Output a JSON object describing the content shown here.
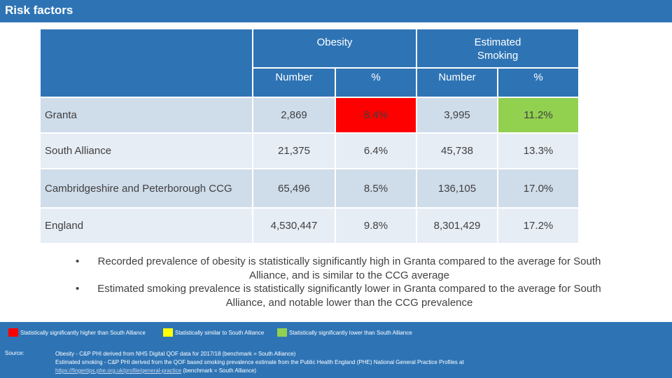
{
  "header": {
    "title": "Risk factors"
  },
  "table": {
    "group_headers": {
      "obesity": "Obesity",
      "smoking": "Estimated Smoking"
    },
    "sub_headers": {
      "obesity_number": "Number",
      "obesity_pct": "%",
      "smoking_number": "Number",
      "smoking_pct": "%"
    },
    "rows": [
      {
        "name": "Granta",
        "obesity_number": "2,869",
        "obesity_pct": "8.4%",
        "smoking_number": "3,995",
        "smoking_pct": "11.2%"
      },
      {
        "name": "South Alliance",
        "obesity_number": "21,375",
        "obesity_pct": "6.4%",
        "smoking_number": "45,738",
        "smoking_pct": "13.3%"
      },
      {
        "name": "Cambridgeshire and Peterborough CCG",
        "obesity_number": "65,496",
        "obesity_pct": "8.5%",
        "smoking_number": "136,105",
        "smoking_pct": "17.0%"
      },
      {
        "name": "England",
        "obesity_number": "4,530,447",
        "obesity_pct": "9.8%",
        "smoking_number": "8,301,429",
        "smoking_pct": "17.2%"
      }
    ],
    "highlight_colors": {
      "high": "#ff0000",
      "similar": "#ffff00",
      "low": "#92d050"
    }
  },
  "bullets": [
    "Recorded prevalence of obesity is statistically significantly high in Granta compared to the average for South Alliance, and is similar to the CCG average",
    "Estimated smoking prevalence is statistically significantly lower in Granta compared to the average for South Alliance, and notable lower than the CCG prevalence"
  ],
  "bullet_symbol": "•",
  "legend": {
    "high": "Statistically significantly higher than South Alliance",
    "similar": "Statistically similar to South Alliance",
    "low": "Statistically significantly lower than South Alliance"
  },
  "source": {
    "label": "Source:",
    "line1": "Obesity - C&P PHI derived from NHS Digital QOF data for 2017/18 (benchmark = South Alliance)",
    "line2": "Estimated smoking - C&P PHI derived from the QOF based smoking prevalence estimate from the Public Health England (PHE) National General Practice Profiles at",
    "url": "https://fingertips.phe.org.uk/profile/general-practice",
    "line3_suffix": " (benchmark = South Alliance)"
  }
}
